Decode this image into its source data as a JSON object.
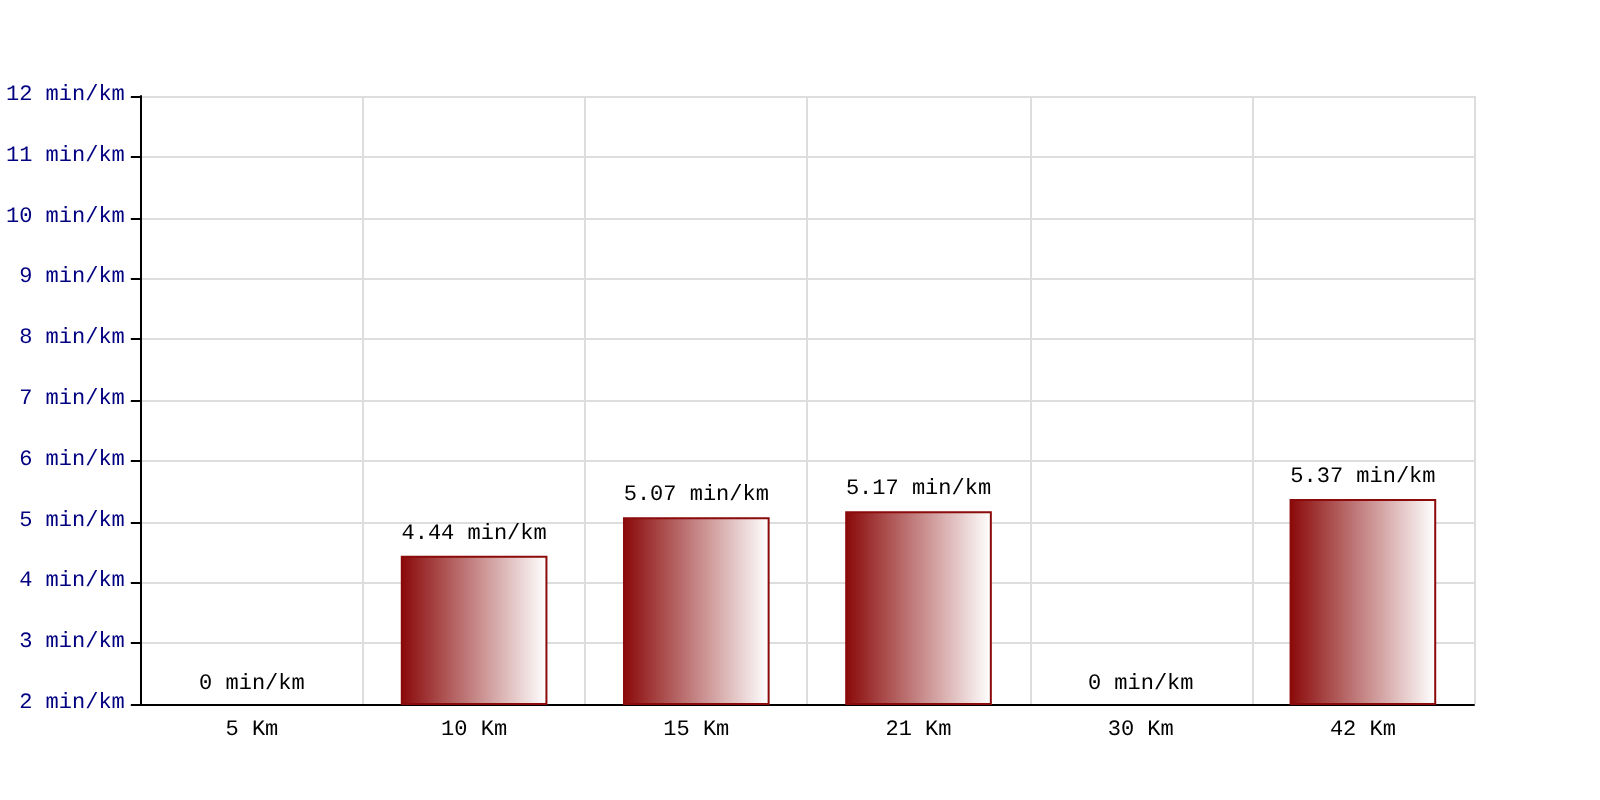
{
  "chart_data": {
    "type": "bar",
    "categories": [
      "5 Km",
      "10 Km",
      "15 Km",
      "21 Km",
      "30 Km",
      "42 Km"
    ],
    "values": [
      null,
      4.44,
      5.07,
      5.17,
      null,
      5.37
    ],
    "value_labels": [
      "0 min/km",
      "4.44 min/km",
      "5.07 min/km",
      "5.17 min/km",
      "0 min/km",
      "5.37 min/km"
    ],
    "color": "#8b0a0a",
    "ylim": [
      2,
      12
    ],
    "yticks": [
      {
        "value": 2,
        "label": "2 min/km"
      },
      {
        "value": 3,
        "label": "3 min/km"
      },
      {
        "value": 4,
        "label": "4 min/km"
      },
      {
        "value": 5,
        "label": "5 min/km"
      },
      {
        "value": 6,
        "label": "6 min/km"
      },
      {
        "value": 7,
        "label": "7 min/km"
      },
      {
        "value": 8,
        "label": "8 min/km"
      },
      {
        "value": 9,
        "label": "9 min/km"
      },
      {
        "value": 10,
        "label": "10 min/km"
      },
      {
        "value": 11,
        "label": "11 min/km"
      },
      {
        "value": 12,
        "label": "12 min/km"
      }
    ],
    "grid": true
  }
}
